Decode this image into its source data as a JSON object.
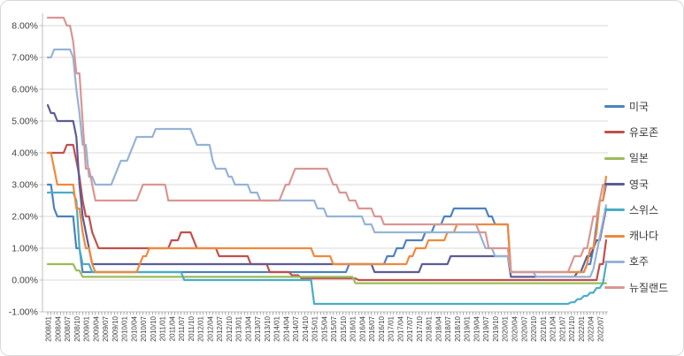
{
  "window": {
    "background": "#FFFFFF",
    "border_color": "#D9D9D9"
  },
  "chart_data": {
    "type": "line",
    "title": "",
    "subtitle": "",
    "grid": true,
    "legend_position": "right",
    "legend": [
      "미국",
      "유로존",
      "일본",
      "영국",
      "스위스",
      "캐나다",
      "호주",
      "뉴질랜드"
    ],
    "style": {
      "gridline_color": "#D9D9D9",
      "axis_color": "#BFBFBF",
      "tick_color": "#8C8C8C",
      "label_color": "#404040",
      "line_width": 2.2
    },
    "y_axis": {
      "min": -1.0,
      "max": 8.5,
      "unit": "%",
      "tick_values": [
        8,
        7,
        6,
        5,
        4,
        3,
        2,
        1,
        0,
        -1
      ],
      "tick_labels": [
        "8.00%",
        "7.00%",
        "6.00%",
        "5.00%",
        "4.00%",
        "3.00%",
        "2.00%",
        "1.00%",
        "0.00%",
        "-1.00%"
      ]
    },
    "x_axis": {
      "start": "2008/01",
      "end": "2022/09",
      "sampling": "monthly",
      "label_interval_months": 3,
      "tick_labels": [
        "2008/01",
        "2008/04",
        "2008/07",
        "2008/10",
        "2009/01",
        "2009/04",
        "2009/07",
        "2009/10",
        "2010/01",
        "2010/04",
        "2010/07",
        "2010/10",
        "2011/01",
        "2011/04",
        "2011/07",
        "2011/10",
        "2012/01",
        "2012/04",
        "2012/07",
        "2012/10",
        "2013/01",
        "2013/04",
        "2013/07",
        "2013/10",
        "2014/01",
        "2014/04",
        "2014/07",
        "2014/10",
        "2015/01",
        "2015/04",
        "2015/07",
        "2015/10",
        "2016/01",
        "2016/04",
        "2016/07",
        "2016/10",
        "2017/01",
        "2017/04",
        "2017/07",
        "2017/10",
        "2018/01",
        "2018/04",
        "2018/07",
        "2018/10",
        "2019/01",
        "2019/04",
        "2019/07",
        "2019/10",
        "2020/01",
        "2020/04",
        "2020/07",
        "2020/10",
        "2021/01",
        "2021/04",
        "2021/07",
        "2021/10",
        "2022/01",
        "2022/04",
        "2022/07"
      ]
    },
    "series": [
      {
        "key": "us",
        "label": "미국",
        "color": "#4F81BD",
        "points": [
          [
            "2008/01",
            3.0
          ],
          [
            "2008/03",
            2.25
          ],
          [
            "2008/04",
            2.0
          ],
          [
            "2008/10",
            1.0
          ],
          [
            "2008/12",
            0.25
          ],
          [
            "2015/12",
            0.5
          ],
          [
            "2016/12",
            0.75
          ],
          [
            "2017/03",
            1.0
          ],
          [
            "2017/06",
            1.25
          ],
          [
            "2017/12",
            1.5
          ],
          [
            "2018/03",
            1.75
          ],
          [
            "2018/06",
            2.0
          ],
          [
            "2018/09",
            2.25
          ],
          [
            "2019/08",
            2.0
          ],
          [
            "2019/10",
            1.75
          ],
          [
            "2020/03",
            0.25
          ],
          [
            "2022/03",
            0.5
          ],
          [
            "2022/05",
            1.0
          ],
          [
            "2022/06",
            1.75
          ],
          [
            "2022/07",
            2.5
          ],
          [
            "2022/09",
            3.0
          ]
        ]
      },
      {
        "key": "eurozone",
        "label": "유로존",
        "color": "#C0504D",
        "points": [
          [
            "2008/01",
            4.0
          ],
          [
            "2008/07",
            4.25
          ],
          [
            "2008/10",
            3.75
          ],
          [
            "2008/11",
            3.25
          ],
          [
            "2008/12",
            2.5
          ],
          [
            "2009/01",
            2.0
          ],
          [
            "2009/03",
            1.5
          ],
          [
            "2009/04",
            1.25
          ],
          [
            "2009/05",
            1.0
          ],
          [
            "2011/04",
            1.25
          ],
          [
            "2011/07",
            1.5
          ],
          [
            "2011/11",
            1.25
          ],
          [
            "2011/12",
            1.0
          ],
          [
            "2012/07",
            0.75
          ],
          [
            "2013/05",
            0.5
          ],
          [
            "2013/11",
            0.25
          ],
          [
            "2014/06",
            0.15
          ],
          [
            "2014/09",
            0.05
          ],
          [
            "2016/03",
            0.0
          ],
          [
            "2022/07",
            0.5
          ],
          [
            "2022/09",
            1.25
          ]
        ]
      },
      {
        "key": "japan",
        "label": "일본",
        "color": "#9BBB59",
        "points": [
          [
            "2008/01",
            0.5
          ],
          [
            "2008/10",
            0.3
          ],
          [
            "2008/12",
            0.1
          ],
          [
            "2016/02",
            -0.1
          ]
        ]
      },
      {
        "key": "uk",
        "label": "영국",
        "color": "#5D5C96",
        "points": [
          [
            "2008/01",
            5.5
          ],
          [
            "2008/02",
            5.25
          ],
          [
            "2008/04",
            5.0
          ],
          [
            "2008/10",
            4.5
          ],
          [
            "2008/11",
            3.0
          ],
          [
            "2008/12",
            2.0
          ],
          [
            "2009/01",
            1.5
          ],
          [
            "2009/02",
            1.0
          ],
          [
            "2009/03",
            0.5
          ],
          [
            "2016/08",
            0.25
          ],
          [
            "2017/11",
            0.5
          ],
          [
            "2018/08",
            0.75
          ],
          [
            "2020/03",
            0.1
          ],
          [
            "2021/12",
            0.25
          ],
          [
            "2022/02",
            0.5
          ],
          [
            "2022/03",
            0.75
          ],
          [
            "2022/05",
            1.0
          ],
          [
            "2022/06",
            1.25
          ],
          [
            "2022/08",
            1.75
          ],
          [
            "2022/09",
            2.25
          ]
        ]
      },
      {
        "key": "switzerland",
        "label": "스위스",
        "color": "#4BACC6",
        "points": [
          [
            "2008/01",
            2.75
          ],
          [
            "2008/10",
            2.5
          ],
          [
            "2008/11",
            1.0
          ],
          [
            "2008/12",
            0.5
          ],
          [
            "2009/03",
            0.25
          ],
          [
            "2011/08",
            0.0
          ],
          [
            "2015/01",
            -0.75
          ],
          [
            "2021/10",
            -0.7
          ],
          [
            "2021/12",
            -0.6
          ],
          [
            "2022/02",
            -0.5
          ],
          [
            "2022/04",
            -0.4
          ],
          [
            "2022/06",
            -0.25
          ],
          [
            "2022/08",
            -0.1
          ],
          [
            "2022/09",
            0.5
          ]
        ]
      },
      {
        "key": "canada",
        "label": "캐나다",
        "color": "#F0893C",
        "points": [
          [
            "2008/01",
            4.0
          ],
          [
            "2008/03",
            3.5
          ],
          [
            "2008/04",
            3.0
          ],
          [
            "2008/10",
            2.25
          ],
          [
            "2008/12",
            1.5
          ],
          [
            "2009/01",
            1.0
          ],
          [
            "2009/03",
            0.5
          ],
          [
            "2009/04",
            0.25
          ],
          [
            "2010/06",
            0.5
          ],
          [
            "2010/07",
            0.75
          ],
          [
            "2010/09",
            1.0
          ],
          [
            "2015/01",
            0.75
          ],
          [
            "2015/07",
            0.5
          ],
          [
            "2017/07",
            0.75
          ],
          [
            "2017/09",
            1.0
          ],
          [
            "2018/01",
            1.25
          ],
          [
            "2018/07",
            1.5
          ],
          [
            "2018/10",
            1.75
          ],
          [
            "2020/03",
            0.25
          ],
          [
            "2022/03",
            0.5
          ],
          [
            "2022/04",
            1.0
          ],
          [
            "2022/06",
            1.5
          ],
          [
            "2022/07",
            2.5
          ],
          [
            "2022/09",
            3.25
          ]
        ]
      },
      {
        "key": "australia",
        "label": "호주",
        "color": "#95B3D7",
        "points": [
          [
            "2008/01",
            7.0
          ],
          [
            "2008/03",
            7.25
          ],
          [
            "2008/09",
            7.0
          ],
          [
            "2008/10",
            6.0
          ],
          [
            "2008/11",
            5.25
          ],
          [
            "2008/12",
            4.25
          ],
          [
            "2009/02",
            3.25
          ],
          [
            "2009/04",
            3.0
          ],
          [
            "2009/10",
            3.25
          ],
          [
            "2009/11",
            3.5
          ],
          [
            "2009/12",
            3.75
          ],
          [
            "2010/03",
            4.0
          ],
          [
            "2010/04",
            4.25
          ],
          [
            "2010/05",
            4.5
          ],
          [
            "2010/11",
            4.75
          ],
          [
            "2011/11",
            4.5
          ],
          [
            "2011/12",
            4.25
          ],
          [
            "2012/05",
            3.75
          ],
          [
            "2012/06",
            3.5
          ],
          [
            "2012/10",
            3.25
          ],
          [
            "2012/12",
            3.0
          ],
          [
            "2013/05",
            2.75
          ],
          [
            "2013/08",
            2.5
          ],
          [
            "2015/02",
            2.25
          ],
          [
            "2015/05",
            2.0
          ],
          [
            "2016/05",
            1.75
          ],
          [
            "2016/08",
            1.5
          ],
          [
            "2019/06",
            1.25
          ],
          [
            "2019/07",
            1.0
          ],
          [
            "2019/10",
            0.75
          ],
          [
            "2020/03",
            0.25
          ],
          [
            "2020/11",
            0.1
          ],
          [
            "2022/05",
            0.35
          ],
          [
            "2022/06",
            0.85
          ],
          [
            "2022/07",
            1.35
          ],
          [
            "2022/08",
            1.85
          ],
          [
            "2022/09",
            2.35
          ]
        ]
      },
      {
        "key": "new-zealand",
        "label": "뉴질랜드",
        "color": "#D99694",
        "points": [
          [
            "2008/01",
            8.25
          ],
          [
            "2008/07",
            8.0
          ],
          [
            "2008/09",
            7.5
          ],
          [
            "2008/10",
            6.5
          ],
          [
            "2008/12",
            5.0
          ],
          [
            "2009/01",
            3.5
          ],
          [
            "2009/03",
            3.0
          ],
          [
            "2009/04",
            2.5
          ],
          [
            "2010/06",
            2.75
          ],
          [
            "2010/07",
            3.0
          ],
          [
            "2011/03",
            2.5
          ],
          [
            "2014/03",
            2.75
          ],
          [
            "2014/04",
            3.0
          ],
          [
            "2014/06",
            3.25
          ],
          [
            "2014/07",
            3.5
          ],
          [
            "2015/06",
            3.25
          ],
          [
            "2015/07",
            3.0
          ],
          [
            "2015/09",
            2.75
          ],
          [
            "2015/12",
            2.5
          ],
          [
            "2016/03",
            2.25
          ],
          [
            "2016/08",
            2.0
          ],
          [
            "2016/11",
            1.75
          ],
          [
            "2019/05",
            1.5
          ],
          [
            "2019/08",
            1.0
          ],
          [
            "2020/03",
            0.25
          ],
          [
            "2021/10",
            0.5
          ],
          [
            "2021/11",
            0.75
          ],
          [
            "2022/02",
            1.0
          ],
          [
            "2022/04",
            1.5
          ],
          [
            "2022/05",
            2.0
          ],
          [
            "2022/07",
            2.5
          ],
          [
            "2022/08",
            3.0
          ]
        ]
      }
    ]
  }
}
